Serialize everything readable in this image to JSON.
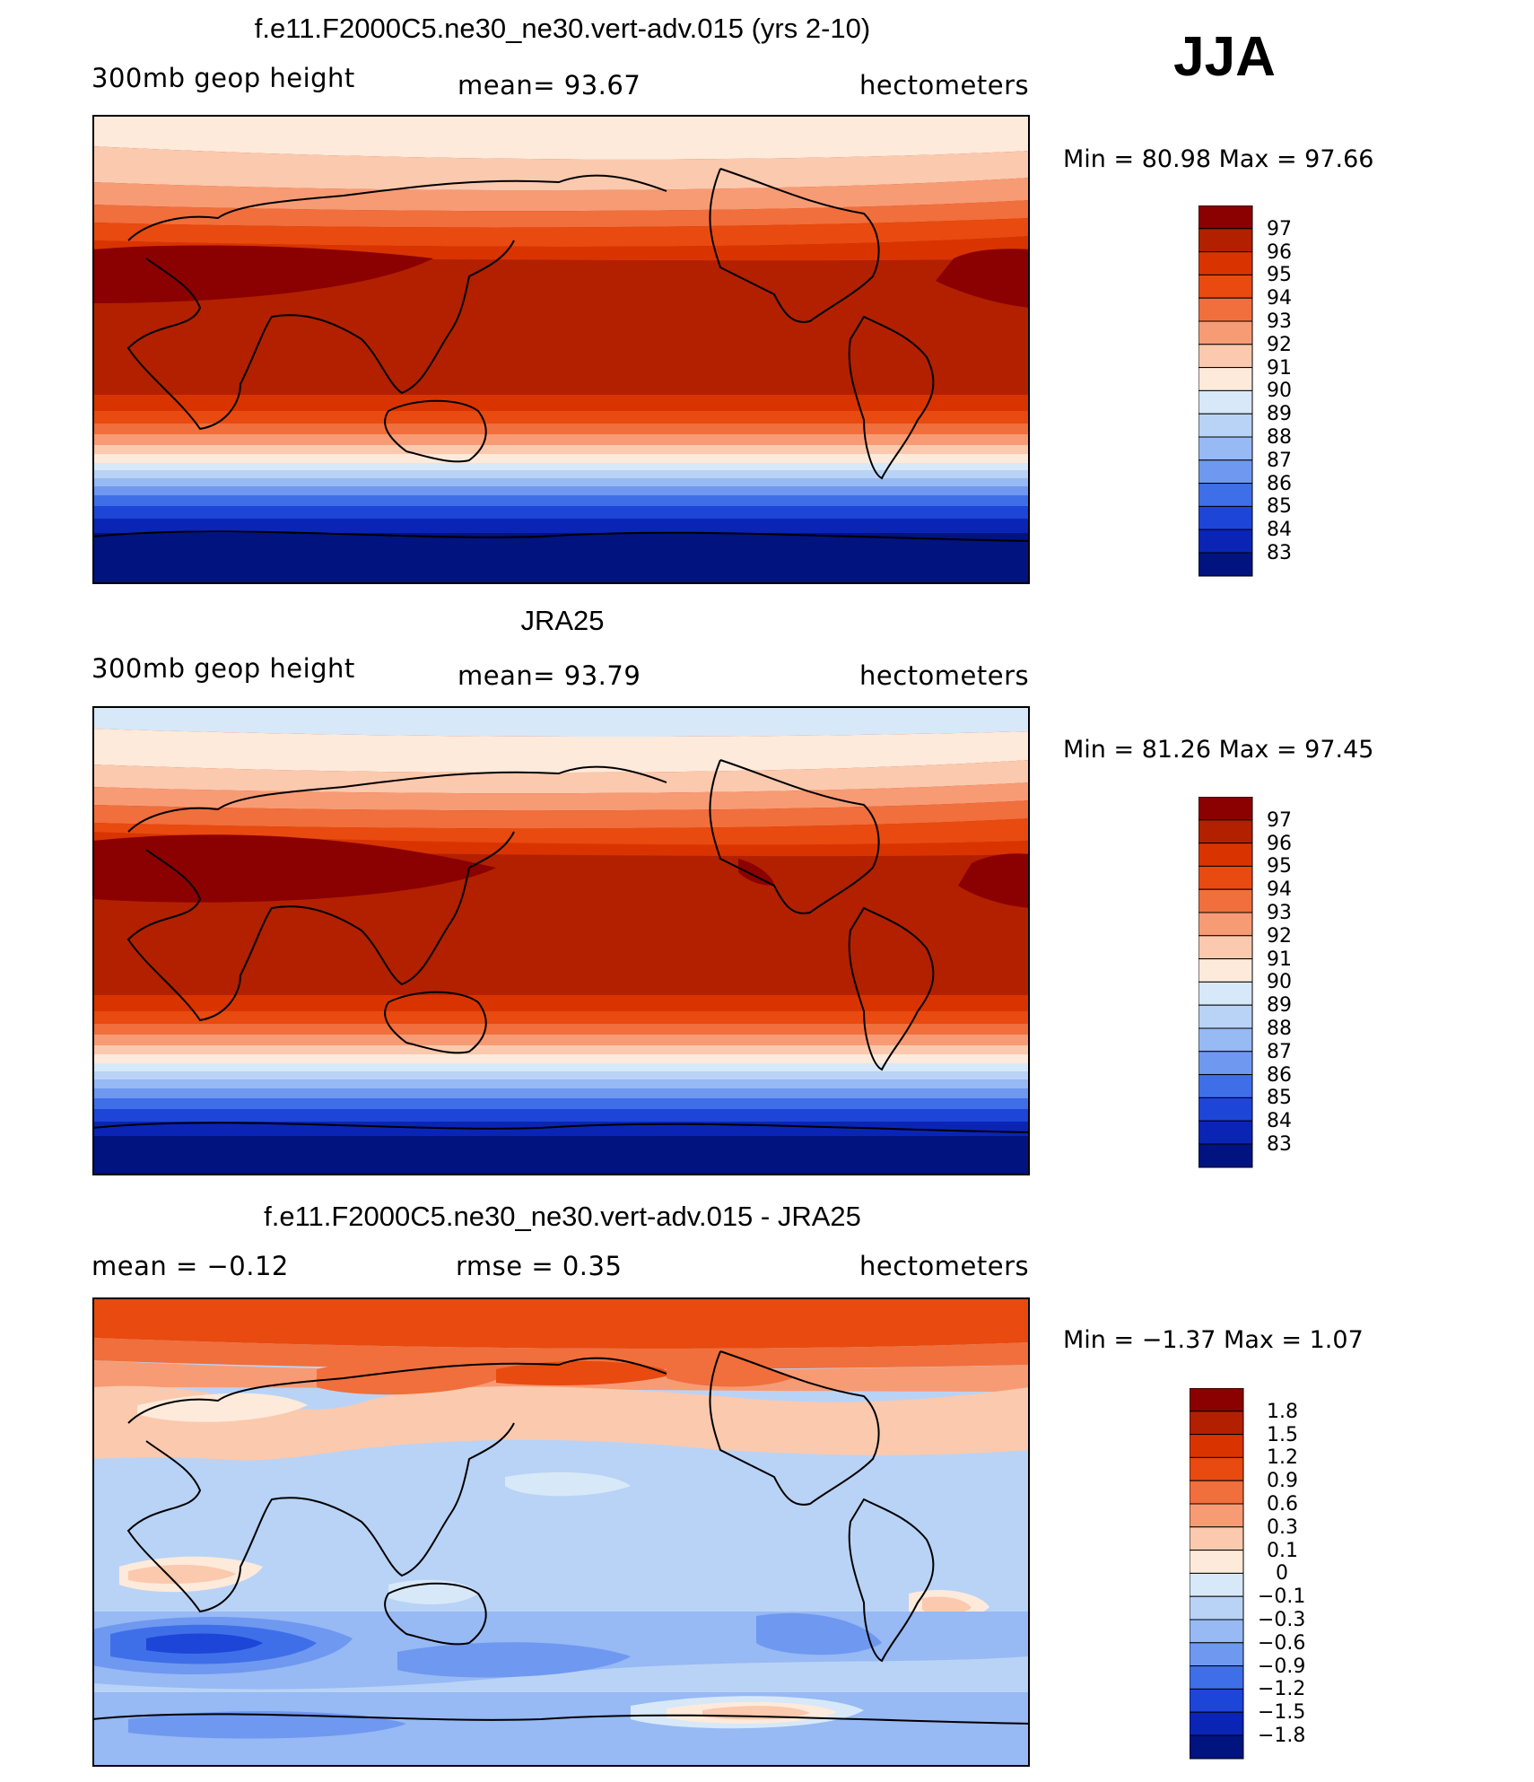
{
  "season": "JJA",
  "panels": [
    {
      "id": "model",
      "title": "f.e11.F2000C5.ne30_ne30.vert-adv.015 (yrs 2-10)",
      "left_label": "300mb  geop  height",
      "center_label": "mean=   93.67",
      "right_label": "hectometers",
      "min_max": "Min  =    80.98  Max  =    97.66",
      "colorbar_labels": [
        "97",
        "96",
        "95",
        "94",
        "93",
        "92",
        "91",
        "90",
        "89",
        "88",
        "87",
        "86",
        "85",
        "84",
        "83"
      ]
    },
    {
      "id": "obs",
      "title": "JRA25",
      "left_label": "300mb  geop  height",
      "center_label": "mean=   93.79",
      "right_label": "hectometers",
      "min_max": "Min  =    81.26  Max  =    97.45",
      "colorbar_labels": [
        "97",
        "96",
        "95",
        "94",
        "93",
        "92",
        "91",
        "90",
        "89",
        "88",
        "87",
        "86",
        "85",
        "84",
        "83"
      ]
    },
    {
      "id": "diff",
      "title": "f.e11.F2000C5.ne30_ne30.vert-adv.015 - JRA25",
      "left_label": "mean  =    −0.12",
      "center_label": "rmse  =     0.35",
      "right_label": "hectometers",
      "min_max": "Min  =    −1.37  Max  =     1.07",
      "colorbar_labels": [
        "1.8",
        "1.5",
        "1.2",
        "0.9",
        "0.6",
        "0.3",
        "0.1",
        "0",
        "−0.1",
        "−0.3",
        "−0.6",
        "−0.9",
        "−1.2",
        "−1.5",
        "−1.8"
      ]
    }
  ],
  "colors": {
    "abs_scale": [
      "#8b0000",
      "#b22000",
      "#d93400",
      "#e84a10",
      "#f06f3c",
      "#f79b75",
      "#fbc9ae",
      "#feeadb",
      "#d7e8f8",
      "#b9d3f6",
      "#97b9f4",
      "#6f98f0",
      "#3f6fe8",
      "#1d45d8",
      "#0a25b5",
      "#00137f"
    ],
    "diff_scale": [
      "#8b0000",
      "#b22000",
      "#d93400",
      "#e84a10",
      "#f06f3c",
      "#f79b75",
      "#fbc9ae",
      "#feeadb",
      "#d7e8f8",
      "#b9d3f6",
      "#97b9f4",
      "#6f98f0",
      "#3f6fe8",
      "#1d45d8",
      "#0a25b5",
      "#00137f"
    ]
  }
}
